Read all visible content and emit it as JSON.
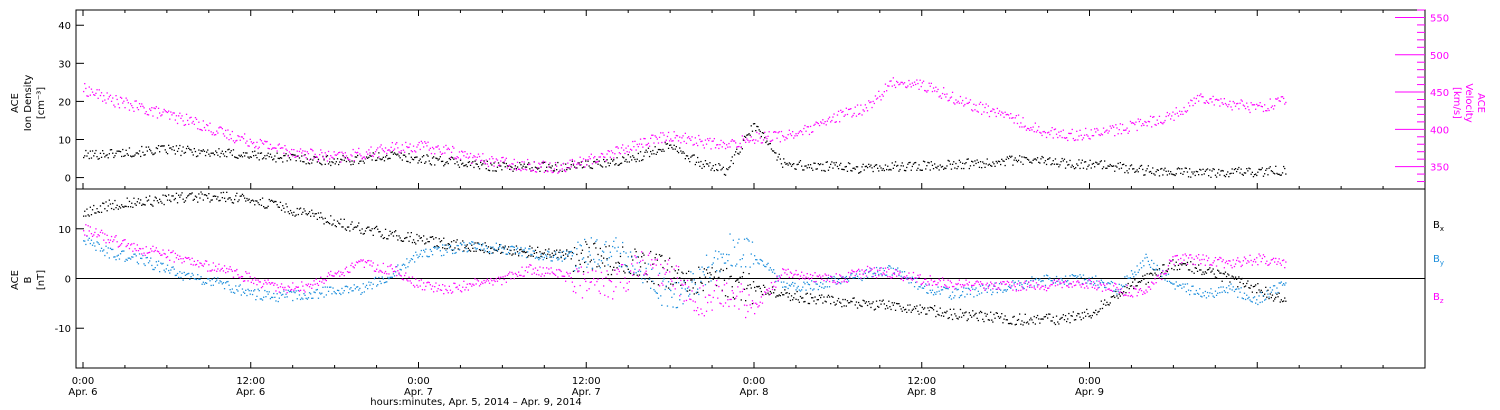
{
  "chart_data": [
    {
      "type": "scatter",
      "ylabel_left": [
        "ACE",
        "Ion Density",
        "[cm⁻³]"
      ],
      "ylabel_right": [
        "ACE",
        "Velocity",
        "[km/s]"
      ],
      "ylim_left": [
        -3,
        44
      ],
      "yticks_left": [
        0,
        10,
        20,
        30,
        40
      ],
      "ylim_right": [
        320,
        560
      ],
      "yticks_right": [
        350,
        400,
        450,
        500,
        550
      ],
      "series": [
        {
          "axis": "left",
          "color": "#000000",
          "x": [
            0,
            2,
            4,
            6,
            8,
            10,
            12,
            14,
            16,
            18,
            20,
            22,
            24,
            26,
            28,
            30,
            32,
            34,
            36,
            38,
            40,
            42,
            44,
            46,
            48,
            50,
            52,
            54,
            56,
            58,
            60,
            62,
            64,
            66,
            68,
            70,
            72,
            74,
            76,
            78,
            80,
            82,
            84,
            86
          ],
          "values": [
            6,
            6.5,
            7,
            7.5,
            7,
            6.5,
            6,
            5.5,
            5,
            4.5,
            5,
            6,
            5,
            4.5,
            3.5,
            3,
            3,
            3,
            3.5,
            4,
            6,
            9,
            4,
            2,
            14,
            4,
            3,
            3,
            2.5,
            3,
            3.2,
            3.5,
            4,
            4.5,
            4.8,
            4,
            3.5,
            3,
            2,
            1.5,
            1.5,
            1.5,
            1.7,
            2
          ]
        },
        {
          "axis": "right",
          "color": "#ff00ff",
          "x": [
            0,
            2,
            4,
            6,
            8,
            10,
            12,
            14,
            16,
            18,
            20,
            22,
            24,
            26,
            28,
            30,
            32,
            34,
            36,
            38,
            40,
            42,
            44,
            46,
            48,
            50,
            52,
            54,
            56,
            58,
            60,
            62,
            64,
            66,
            68,
            70,
            72,
            74,
            76,
            78,
            80,
            82,
            84,
            86
          ],
          "values": [
            455,
            440,
            430,
            420,
            410,
            395,
            385,
            375,
            368,
            363,
            368,
            375,
            378,
            372,
            362,
            356,
            352,
            350,
            358,
            370,
            383,
            392,
            385,
            378,
            390,
            392,
            400,
            418,
            430,
            465,
            460,
            445,
            430,
            420,
            402,
            393,
            395,
            400,
            410,
            420,
            445,
            435,
            430,
            440
          ]
        }
      ]
    },
    {
      "type": "scatter",
      "ylabel_left": [
        "ACE",
        "B",
        "[nT]"
      ],
      "ylim": [
        -18,
        18
      ],
      "yticks": [
        -10,
        0,
        10
      ],
      "zero_line": 0,
      "legend": [
        {
          "name": "B",
          "sub": "x",
          "color": "#000000"
        },
        {
          "name": "B",
          "sub": "y",
          "color": "#1e8fdc"
        },
        {
          "name": "B",
          "sub": "z",
          "color": "#ff00ff"
        }
      ],
      "series": [
        {
          "color": "#000000",
          "x": [
            0,
            2,
            4,
            6,
            8,
            10,
            12,
            14,
            16,
            18,
            20,
            22,
            24,
            26,
            28,
            30,
            32,
            34,
            36,
            38,
            40,
            42,
            44,
            46,
            48,
            50,
            52,
            54,
            56,
            58,
            60,
            62,
            64,
            66,
            68,
            70,
            72,
            74,
            76,
            78,
            80,
            82,
            84,
            86
          ],
          "values": [
            13,
            15,
            15.5,
            16,
            16.5,
            16.5,
            16,
            14.5,
            13,
            11.5,
            10,
            9,
            8,
            7,
            6.5,
            6,
            5.5,
            5,
            4.5,
            4,
            3,
            1,
            0,
            -1,
            -2,
            -3,
            -4,
            -4.5,
            -5,
            -5.5,
            -6,
            -7,
            -7.5,
            -8,
            -8.2,
            -8,
            -7,
            -3,
            0,
            3,
            2,
            0,
            -2,
            -4.5
          ]
        },
        {
          "color": "#1e8fdc",
          "x": [
            0,
            2,
            4,
            6,
            8,
            10,
            12,
            14,
            16,
            18,
            20,
            22,
            24,
            26,
            28,
            30,
            32,
            34,
            36,
            38,
            40,
            42,
            44,
            46,
            48,
            50,
            52,
            54,
            56,
            58,
            60,
            62,
            64,
            66,
            68,
            70,
            72,
            74,
            76,
            78,
            80,
            82,
            84,
            86
          ],
          "values": [
            8,
            5,
            4,
            2,
            0,
            -1,
            -3,
            -3.5,
            -3,
            -2.5,
            -2,
            1,
            5,
            6,
            6.5,
            6,
            5,
            4.5,
            5,
            6,
            1,
            -4,
            0,
            6,
            5,
            -1,
            -1.5,
            0,
            1,
            2,
            -1.5,
            -3,
            -2.5,
            -1.5,
            -0.5,
            0,
            0,
            -2,
            4,
            -1,
            -3,
            -2,
            -4,
            -1
          ]
        },
        {
          "color": "#ff00ff",
          "x": [
            0,
            2,
            4,
            6,
            8,
            10,
            12,
            14,
            16,
            18,
            20,
            22,
            24,
            26,
            28,
            30,
            32,
            34,
            36,
            38,
            40,
            42,
            44,
            46,
            48,
            50,
            52,
            54,
            56,
            58,
            60,
            62,
            64,
            66,
            68,
            70,
            72,
            74,
            76,
            78,
            80,
            82,
            84,
            86
          ],
          "values": [
            10,
            8,
            6,
            5,
            3,
            2,
            0,
            -2,
            -1.5,
            1,
            3,
            2,
            -1,
            -2,
            -1,
            0,
            2,
            1,
            -1,
            -1,
            3,
            1,
            -5,
            -2,
            -6,
            1,
            0.5,
            0,
            1.5,
            1,
            0,
            -1,
            -1.5,
            -1.5,
            -1.5,
            -1,
            -1,
            -2,
            -3,
            4,
            4,
            3,
            4,
            3
          ]
        }
      ]
    }
  ],
  "x_axis": {
    "range_hours": [
      -0.5,
      96
    ],
    "ticks": [
      {
        "x": 0,
        "time": "0:00",
        "date": "Apr. 6"
      },
      {
        "x": 12,
        "time": "12:00",
        "date": "Apr. 6"
      },
      {
        "x": 24,
        "time": "0:00",
        "date": "Apr. 7"
      },
      {
        "x": 36,
        "time": "12:00",
        "date": "Apr. 7"
      },
      {
        "x": 48,
        "time": "0:00",
        "date": "Apr. 8"
      },
      {
        "x": 60,
        "time": "12:00",
        "date": "Apr. 8"
      },
      {
        "x": 72,
        "time": "0:00",
        "date": "Apr. 9"
      }
    ],
    "title": "hours:minutes, Apr.  5, 2014 – Apr.  9, 2014"
  }
}
